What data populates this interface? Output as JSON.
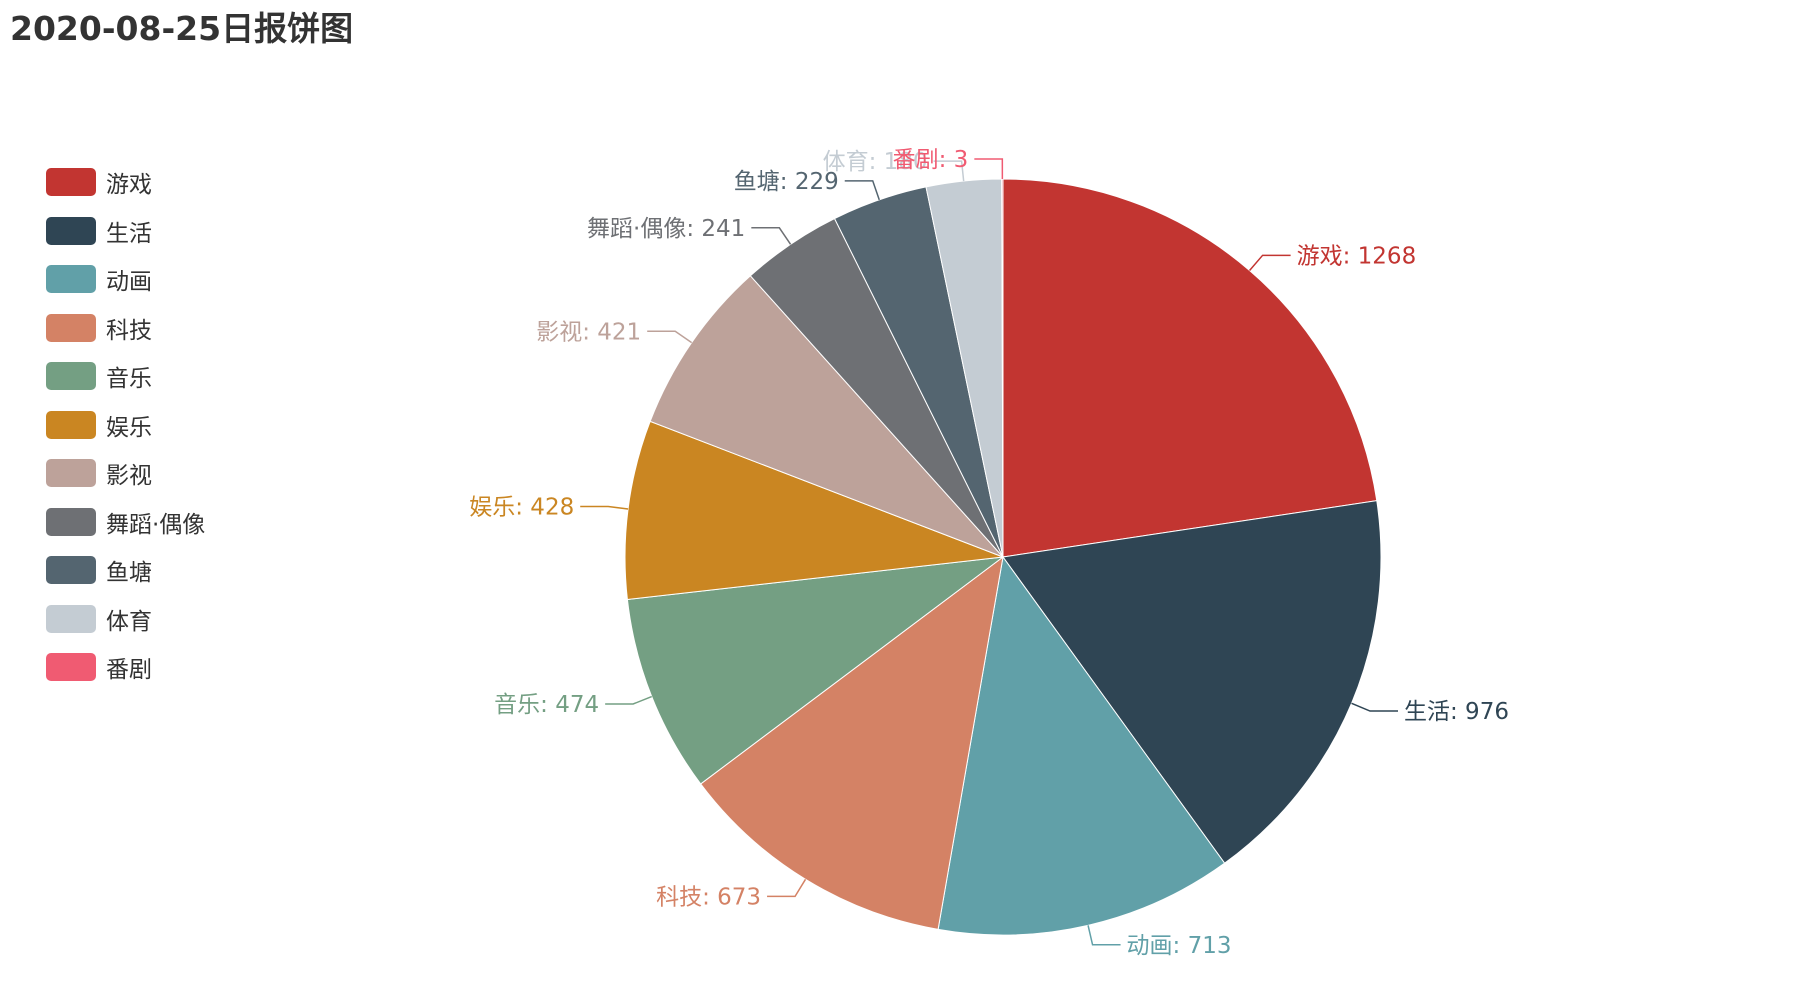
{
  "chart_data": {
    "type": "pie",
    "title": "2020-08-25日报饼图",
    "legend_position": "left",
    "slices": [
      {
        "name": "游戏",
        "value": 1268,
        "label": "游戏: 1268",
        "color": "#c23531"
      },
      {
        "name": "生活",
        "value": 976,
        "label": "生活: 976",
        "color": "#2f4554"
      },
      {
        "name": "动画",
        "value": 713,
        "label": "动画: 713",
        "color": "#61a0a8"
      },
      {
        "name": "科技",
        "value": 673,
        "label": "科技: 673",
        "color": "#d48265"
      },
      {
        "name": "音乐",
        "value": 474,
        "label": "音乐: 474",
        "color": "#749f83"
      },
      {
        "name": "娱乐",
        "value": 428,
        "label": "娱乐: 428",
        "color": "#ca8622"
      },
      {
        "name": "影视",
        "value": 421,
        "label": "影视: 421",
        "color": "#bda29a"
      },
      {
        "name": "舞蹈·偶像",
        "value": 241,
        "label": "舞蹈·偶像: 241",
        "color": "#6e7074"
      },
      {
        "name": "鱼塘",
        "value": 229,
        "label": "鱼塘: 229",
        "color": "#546570"
      },
      {
        "name": "体育",
        "value": 180,
        "label": "体育: 180",
        "color": "#c4ccd3"
      },
      {
        "name": "番剧",
        "value": 3,
        "label": "番剧: 3",
        "color": "#f05b72"
      }
    ]
  }
}
